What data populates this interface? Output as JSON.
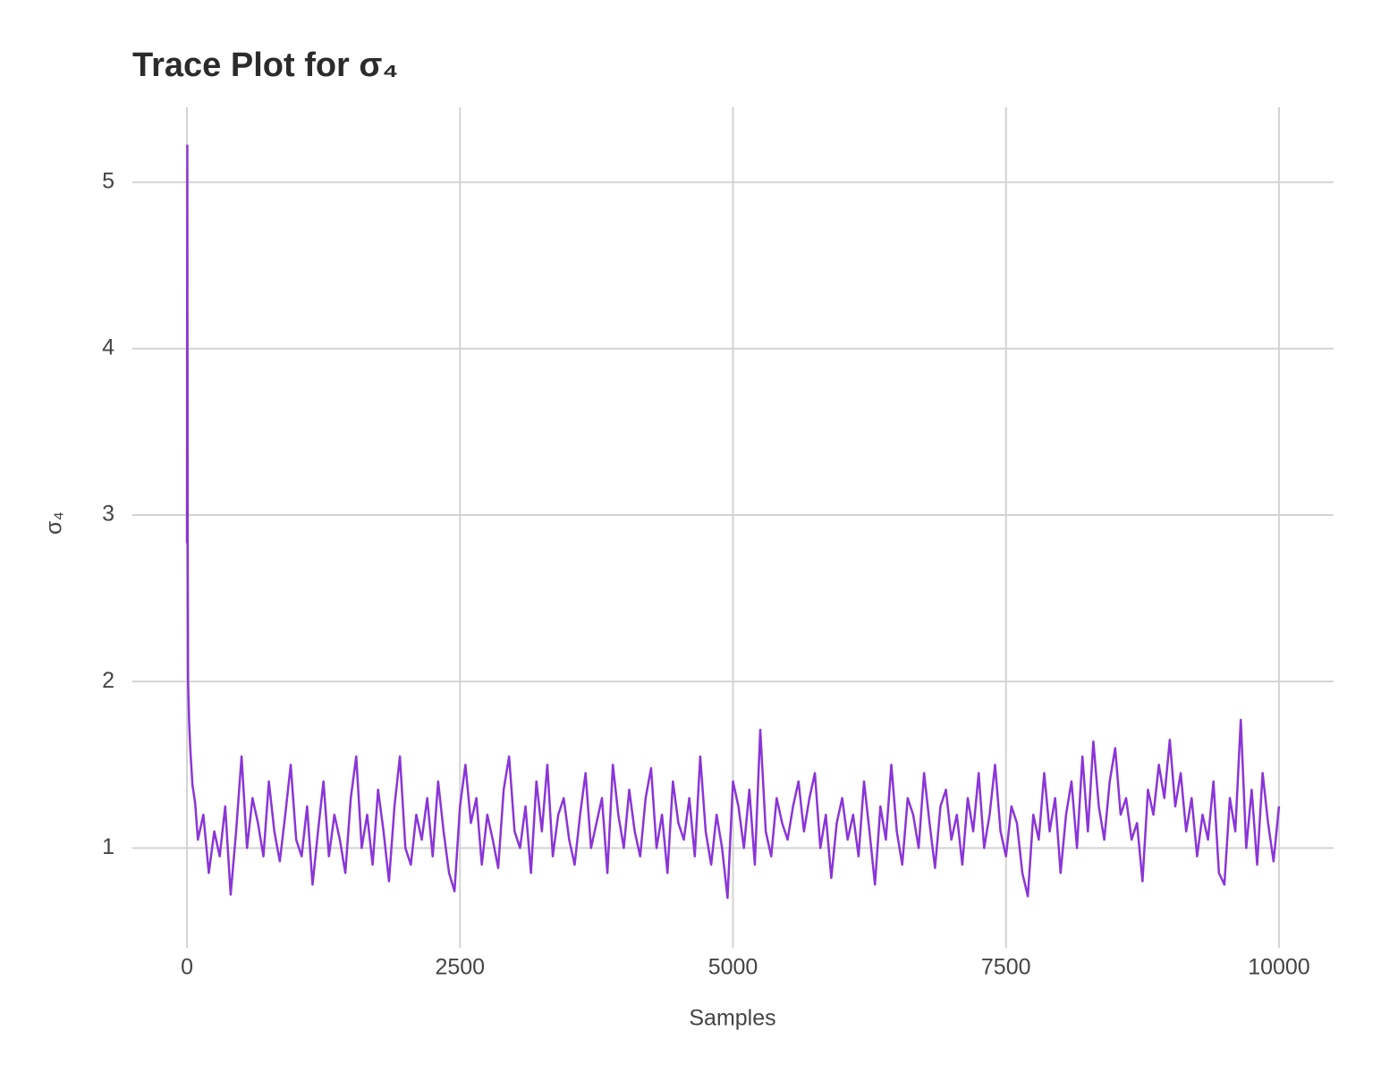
{
  "chart_data": {
    "type": "line",
    "title": "Trace Plot for σ₄",
    "x_label": "Samples",
    "y_label": "σ₄",
    "color": "#8a35d8",
    "grid": true,
    "xlim": [
      -500,
      10500
    ],
    "ylim": [
      0.4,
      5.45
    ],
    "xticks": [
      0,
      2500,
      5000,
      7500,
      10000
    ],
    "yticks": [
      1,
      2,
      3,
      4,
      5
    ],
    "series": [
      {
        "name": "σ₄",
        "color": "#8a35d8",
        "x": [
          0,
          3,
          6,
          10,
          20,
          30,
          50,
          75,
          100,
          150,
          200,
          250,
          300,
          350,
          400,
          450,
          500,
          550,
          600,
          650,
          700,
          750,
          800,
          850,
          900,
          950,
          1000,
          1050,
          1100,
          1150,
          1200,
          1250,
          1300,
          1350,
          1400,
          1450,
          1500,
          1550,
          1600,
          1650,
          1700,
          1750,
          1800,
          1850,
          1900,
          1950,
          2000,
          2050,
          2100,
          2150,
          2200,
          2250,
          2300,
          2350,
          2400,
          2450,
          2500,
          2550,
          2600,
          2650,
          2700,
          2750,
          2800,
          2850,
          2900,
          2950,
          3000,
          3050,
          3100,
          3150,
          3200,
          3250,
          3300,
          3350,
          3400,
          3450,
          3500,
          3550,
          3600,
          3650,
          3700,
          3750,
          3800,
          3850,
          3900,
          3950,
          4000,
          4050,
          4100,
          4150,
          4200,
          4250,
          4300,
          4350,
          4400,
          4450,
          4500,
          4550,
          4600,
          4650,
          4700,
          4750,
          4800,
          4850,
          4900,
          4950,
          5000,
          5050,
          5100,
          5150,
          5200,
          5250,
          5300,
          5350,
          5400,
          5450,
          5500,
          5550,
          5600,
          5650,
          5700,
          5750,
          5800,
          5850,
          5900,
          5950,
          6000,
          6050,
          6100,
          6150,
          6200,
          6250,
          6300,
          6350,
          6400,
          6450,
          6500,
          6550,
          6600,
          6650,
          6700,
          6750,
          6800,
          6850,
          6900,
          6950,
          7000,
          7050,
          7100,
          7150,
          7200,
          7250,
          7300,
          7350,
          7400,
          7450,
          7500,
          7550,
          7600,
          7650,
          7700,
          7750,
          7800,
          7850,
          7900,
          7950,
          8000,
          8050,
          8100,
          8150,
          8200,
          8250,
          8300,
          8350,
          8400,
          8450,
          8500,
          8550,
          8600,
          8650,
          8700,
          8750,
          8800,
          8850,
          8900,
          8950,
          9000,
          9050,
          9100,
          9150,
          9200,
          9250,
          9300,
          9350,
          9400,
          9450,
          9500,
          9550,
          9600,
          9650,
          9700,
          9750,
          9800,
          9850,
          9900,
          9950,
          10000
        ],
        "values": [
          2.83,
          5.22,
          3.0,
          2.0,
          1.75,
          1.6,
          1.38,
          1.27,
          1.05,
          1.2,
          0.85,
          1.1,
          0.95,
          1.25,
          0.72,
          1.1,
          1.55,
          1.0,
          1.3,
          1.15,
          0.95,
          1.4,
          1.1,
          0.92,
          1.2,
          1.5,
          1.05,
          0.95,
          1.25,
          0.78,
          1.1,
          1.4,
          0.95,
          1.2,
          1.05,
          0.85,
          1.3,
          1.55,
          1.0,
          1.2,
          0.9,
          1.35,
          1.1,
          0.8,
          1.25,
          1.55,
          1.0,
          0.9,
          1.2,
          1.05,
          1.3,
          0.95,
          1.4,
          1.1,
          0.85,
          0.74,
          1.25,
          1.5,
          1.15,
          1.3,
          0.9,
          1.2,
          1.05,
          0.88,
          1.35,
          1.55,
          1.1,
          1.0,
          1.25,
          0.85,
          1.4,
          1.1,
          1.5,
          0.95,
          1.2,
          1.3,
          1.05,
          0.9,
          1.2,
          1.45,
          1.0,
          1.15,
          1.3,
          0.85,
          1.5,
          1.2,
          1.0,
          1.35,
          1.1,
          0.95,
          1.3,
          1.48,
          1.0,
          1.2,
          0.85,
          1.4,
          1.15,
          1.05,
          1.3,
          0.95,
          1.55,
          1.1,
          0.9,
          1.2,
          1.0,
          0.7,
          1.4,
          1.25,
          1.0,
          1.35,
          0.9,
          1.71,
          1.1,
          0.95,
          1.3,
          1.15,
          1.05,
          1.25,
          1.4,
          1.1,
          1.3,
          1.45,
          1.0,
          1.2,
          0.82,
          1.15,
          1.3,
          1.05,
          1.2,
          0.95,
          1.4,
          1.1,
          0.78,
          1.25,
          1.05,
          1.5,
          1.1,
          0.9,
          1.3,
          1.2,
          1.0,
          1.45,
          1.15,
          0.88,
          1.25,
          1.35,
          1.05,
          1.2,
          0.9,
          1.3,
          1.1,
          1.45,
          1.0,
          1.2,
          1.5,
          1.1,
          0.95,
          1.25,
          1.15,
          0.85,
          0.71,
          1.2,
          1.05,
          1.45,
          1.1,
          1.3,
          0.85,
          1.2,
          1.4,
          1.0,
          1.55,
          1.1,
          1.64,
          1.25,
          1.05,
          1.4,
          1.6,
          1.2,
          1.3,
          1.05,
          1.15,
          0.8,
          1.35,
          1.2,
          1.5,
          1.3,
          1.65,
          1.25,
          1.45,
          1.1,
          1.3,
          0.95,
          1.2,
          1.05,
          1.4,
          0.85,
          0.78,
          1.3,
          1.1,
          1.77,
          1.0,
          1.35,
          0.9,
          1.45,
          1.15,
          0.92,
          1.25
        ]
      }
    ]
  }
}
